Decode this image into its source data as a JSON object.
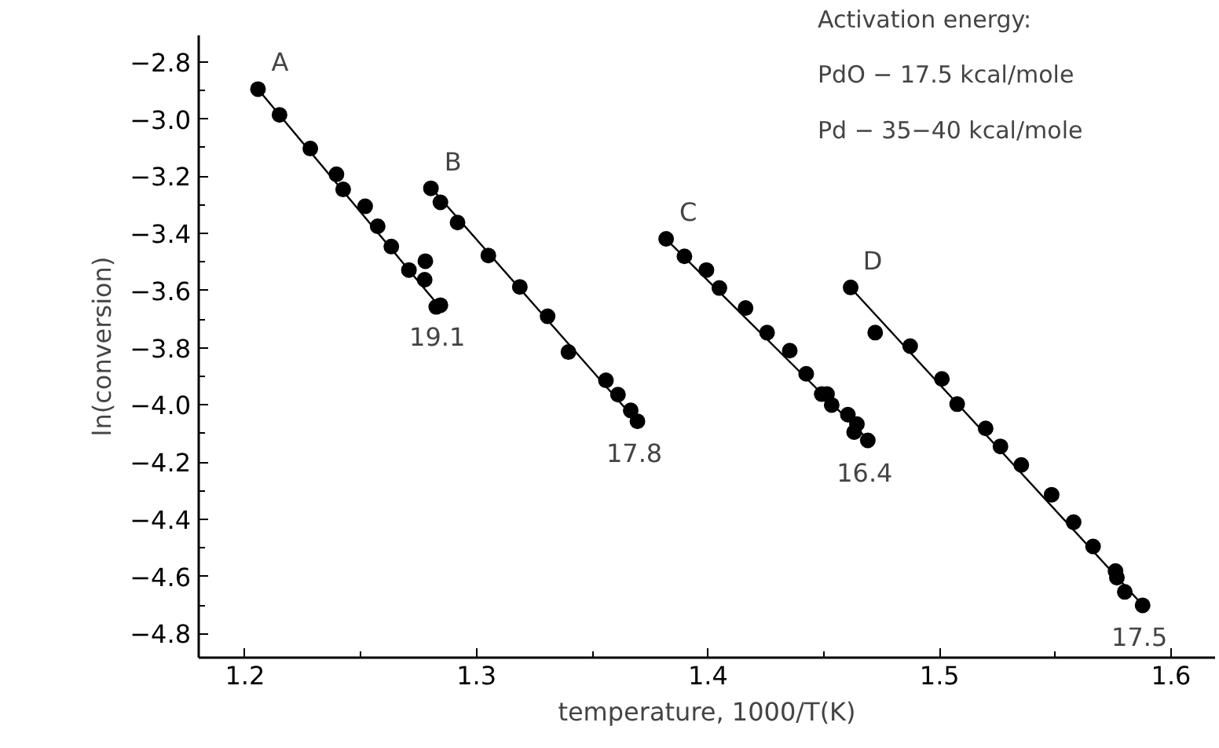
{
  "chart_data": {
    "type": "scatter",
    "xlabel": "temperature, 1000/T(K)",
    "ylabel": "ln(conversion)",
    "xlim": [
      1.18,
      1.619
    ],
    "ylim": [
      -4.884,
      -2.707
    ],
    "xticks": [
      1.2,
      {
        "value": 1.25,
        "label": null
      },
      1.3,
      {
        "value": 1.35,
        "label": null
      },
      1.4,
      {
        "value": 1.45,
        "label": null
      },
      1.5,
      {
        "value": 1.55,
        "label": null
      },
      1.6
    ],
    "yticks": [
      {
        "value": -2.8,
        "label": "−2.8"
      },
      {
        "value": -2.9,
        "label": null
      },
      {
        "value": -3.0,
        "label": "−3.0"
      },
      {
        "value": -3.1,
        "label": null
      },
      {
        "value": -3.2,
        "label": "−3.2"
      },
      {
        "value": -3.3,
        "label": null
      },
      {
        "value": -3.4,
        "label": "−3.4"
      },
      {
        "value": -3.5,
        "label": null
      },
      {
        "value": -3.6,
        "label": "−3.6"
      },
      {
        "value": -3.7,
        "label": null
      },
      {
        "value": -3.8,
        "label": "−3.8"
      },
      {
        "value": -3.9,
        "label": null
      },
      {
        "value": -4.0,
        "label": "−4.0"
      },
      {
        "value": -4.1,
        "label": null
      },
      {
        "value": -4.2,
        "label": "−4.2"
      },
      {
        "value": -4.3,
        "label": null
      },
      {
        "value": -4.4,
        "label": "−4.4"
      },
      {
        "value": -4.5,
        "label": null
      },
      {
        "value": -4.6,
        "label": "−4.6"
      },
      {
        "value": -4.7,
        "label": null
      },
      {
        "value": -4.8,
        "label": "−4.8"
      }
    ],
    "grid": false,
    "series": [
      {
        "marker": "circle",
        "color": "#000000",
        "x": [
          1.2056,
          1.2149,
          1.2282,
          1.2395,
          1.2424,
          1.2519,
          1.2573,
          1.2632,
          1.2708,
          1.2779,
          1.2776,
          1.2826,
          1.2844
        ],
        "values": [
          -2.895,
          -2.985,
          -3.103,
          -3.193,
          -3.246,
          -3.305,
          -3.375,
          -3.446,
          -3.528,
          -3.497,
          -3.562,
          -3.657,
          -3.651
        ]
      },
      {
        "type": "line",
        "color": "#000000",
        "line_style": "solid",
        "x": [
          1.2056,
          1.2844
        ],
        "values": [
          -2.895,
          -3.66
        ]
      },
      {
        "marker": "circle",
        "color": "#000000",
        "x": [
          1.2803,
          1.2844,
          1.2918,
          1.3051,
          1.3187,
          1.3307,
          1.3397,
          1.3559,
          1.3611,
          1.3666,
          1.3695
        ],
        "values": [
          -3.242,
          -3.291,
          -3.362,
          -3.477,
          -3.587,
          -3.69,
          -3.815,
          -3.914,
          -3.964,
          -4.019,
          -4.057
        ]
      },
      {
        "type": "line",
        "color": "#000000",
        "line_style": "solid",
        "x": [
          1.2803,
          1.3695
        ],
        "values": [
          -3.24,
          -4.06
        ]
      },
      {
        "marker": "circle",
        "color": "#000000",
        "x": [
          1.3819,
          1.3898,
          1.3993,
          1.4049,
          1.4162,
          1.4255,
          1.4353,
          1.4424,
          1.4491,
          1.4514,
          1.4534,
          1.4604,
          1.4643,
          1.4631,
          1.469
        ],
        "values": [
          -3.419,
          -3.48,
          -3.528,
          -3.591,
          -3.661,
          -3.747,
          -3.81,
          -3.891,
          -3.962,
          -3.962,
          -4.0,
          -4.034,
          -4.067,
          -4.095,
          -4.124
        ]
      },
      {
        "type": "line",
        "color": "#000000",
        "line_style": "solid",
        "x": [
          1.3819,
          1.469
        ],
        "values": [
          -3.42,
          -4.12
        ]
      },
      {
        "marker": "circle",
        "color": "#000000",
        "x": [
          1.4616,
          1.4722,
          1.4873,
          1.501,
          1.5076,
          1.5199,
          1.5263,
          1.5353,
          1.5484,
          1.5579,
          1.5663,
          1.576,
          1.5766,
          1.58,
          1.5877
        ],
        "values": [
          -3.589,
          -3.747,
          -3.794,
          -3.909,
          -3.997,
          -4.082,
          -4.145,
          -4.21,
          -4.314,
          -4.41,
          -4.495,
          -4.581,
          -4.604,
          -4.654,
          -4.701
        ]
      },
      {
        "type": "line",
        "color": "#000000",
        "line_style": "solid",
        "x": [
          1.4616,
          1.5877
        ],
        "values": [
          -3.59,
          -4.7
        ]
      }
    ],
    "annotations": [
      "A",
      "B",
      "C",
      "D",
      "19.1",
      "17.8",
      "16.4",
      "17.5",
      "Activation energy:",
      "PdO − 17.5 kcal/mole",
      "Pd  − 35−40 kcal/mole"
    ]
  }
}
